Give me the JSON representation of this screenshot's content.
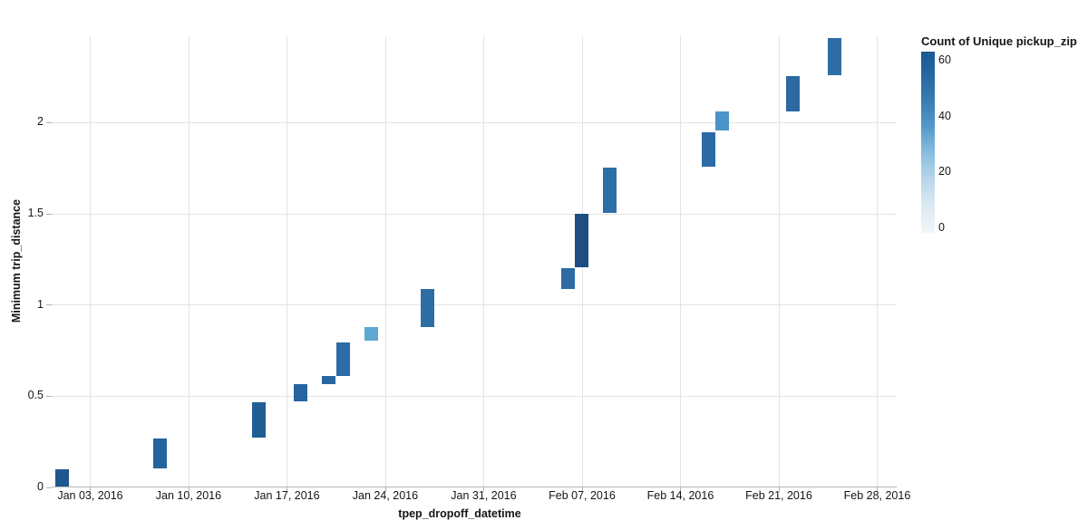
{
  "colors": {
    "background": "#ffffff",
    "grid": "#e3e3e3",
    "axis": "#b3b3b3",
    "text": "#151515"
  },
  "chart_data": {
    "type": "bar",
    "subtype": "waterfall-binned-rect",
    "title": "",
    "x_axis": {
      "title": "tpep_dropoff_datetime",
      "domain_days": [
        -0.74,
        59.39
      ],
      "ticks": [
        {
          "label": "Jan 03, 2016",
          "day": 2
        },
        {
          "label": "Jan 10, 2016",
          "day": 9
        },
        {
          "label": "Jan 17, 2016",
          "day": 16
        },
        {
          "label": "Jan 24, 2016",
          "day": 23
        },
        {
          "label": "Jan 31, 2016",
          "day": 30
        },
        {
          "label": "Feb 07, 2016",
          "day": 37
        },
        {
          "label": "Feb 14, 2016",
          "day": 44
        },
        {
          "label": "Feb 21, 2016",
          "day": 51
        },
        {
          "label": "Feb 28, 2016",
          "day": 58
        }
      ]
    },
    "y_axis": {
      "title": "Minimum trip_distance",
      "range": [
        0,
        2.472
      ],
      "ticks": [
        {
          "label": "0",
          "value": 0
        },
        {
          "label": "0.5",
          "value": 0.5
        },
        {
          "label": "1",
          "value": 1
        },
        {
          "label": "1.5",
          "value": 1.5
        },
        {
          "label": "2",
          "value": 2
        }
      ]
    },
    "legend": {
      "title": "Count of Unique pickup_zip",
      "range": [
        0,
        63
      ],
      "ticks": [
        {
          "label": "60",
          "value": 60
        },
        {
          "label": "40",
          "value": 40
        },
        {
          "label": "20",
          "value": 20
        },
        {
          "label": "0",
          "value": 0
        }
      ],
      "gradient_stops_top_to_bottom": [
        "#1b5994",
        "#24639e",
        "#3579b1",
        "#4f96c8",
        "#85bbdd",
        "#b7d6ea",
        "#dce9f2",
        "#f2f5f7"
      ]
    },
    "bars": [
      {
        "date": "Jan 01, 2016",
        "day": 0,
        "y0": 0.0,
        "y1": 0.095,
        "count": 52,
        "color": "#1f578f"
      },
      {
        "date": "Jan 08, 2016",
        "day": 7,
        "y0": 0.1,
        "y1": 0.265,
        "count": 48,
        "color": "#24639d"
      },
      {
        "date": "Jan 15, 2016",
        "day": 14,
        "y0": 0.27,
        "y1": 0.465,
        "count": 50,
        "color": "#235d95"
      },
      {
        "date": "Jan 18, 2016",
        "day": 17,
        "y0": 0.47,
        "y1": 0.565,
        "count": 48,
        "color": "#2765a0"
      },
      {
        "date": "Jan 20, 2016",
        "day": 19,
        "y0": 0.565,
        "y1": 0.61,
        "count": 48,
        "color": "#2766a2"
      },
      {
        "date": "Jan 21, 2016",
        "day": 20,
        "y0": 0.61,
        "y1": 0.795,
        "count": 46,
        "color": "#2b6ba6"
      },
      {
        "date": "Jan 23, 2016",
        "day": 22,
        "y0": 0.8,
        "y1": 0.875,
        "count": 31,
        "color": "#5ea7d2"
      },
      {
        "date": "Jan 27, 2016",
        "day": 26,
        "y0": 0.875,
        "y1": 1.085,
        "count": 46,
        "color": "#2e6da6"
      },
      {
        "date": "Feb 06, 2016",
        "day": 36,
        "y0": 1.085,
        "y1": 1.2,
        "count": 46,
        "color": "#2d6ba5"
      },
      {
        "date": "Feb 07, 2016",
        "day": 37,
        "y0": 1.205,
        "y1": 1.5,
        "count": 57,
        "color": "#1d4d82"
      },
      {
        "date": "Feb 09, 2016",
        "day": 39,
        "y0": 1.505,
        "y1": 1.75,
        "count": 45,
        "color": "#2e6ea8"
      },
      {
        "date": "Feb 16, 2016",
        "day": 46,
        "y0": 1.755,
        "y1": 1.945,
        "count": 46,
        "color": "#2d6ba5"
      },
      {
        "date": "Feb 17, 2016",
        "day": 47,
        "y0": 1.955,
        "y1": 2.06,
        "count": 39,
        "color": "#4a94c8"
      },
      {
        "date": "Feb 22, 2016",
        "day": 52,
        "y0": 2.06,
        "y1": 2.255,
        "count": 47,
        "color": "#2c69a3"
      },
      {
        "date": "Feb 25, 2016",
        "day": 55,
        "y0": 2.26,
        "y1": 2.46,
        "count": 46,
        "color": "#2e6ca6"
      }
    ]
  }
}
